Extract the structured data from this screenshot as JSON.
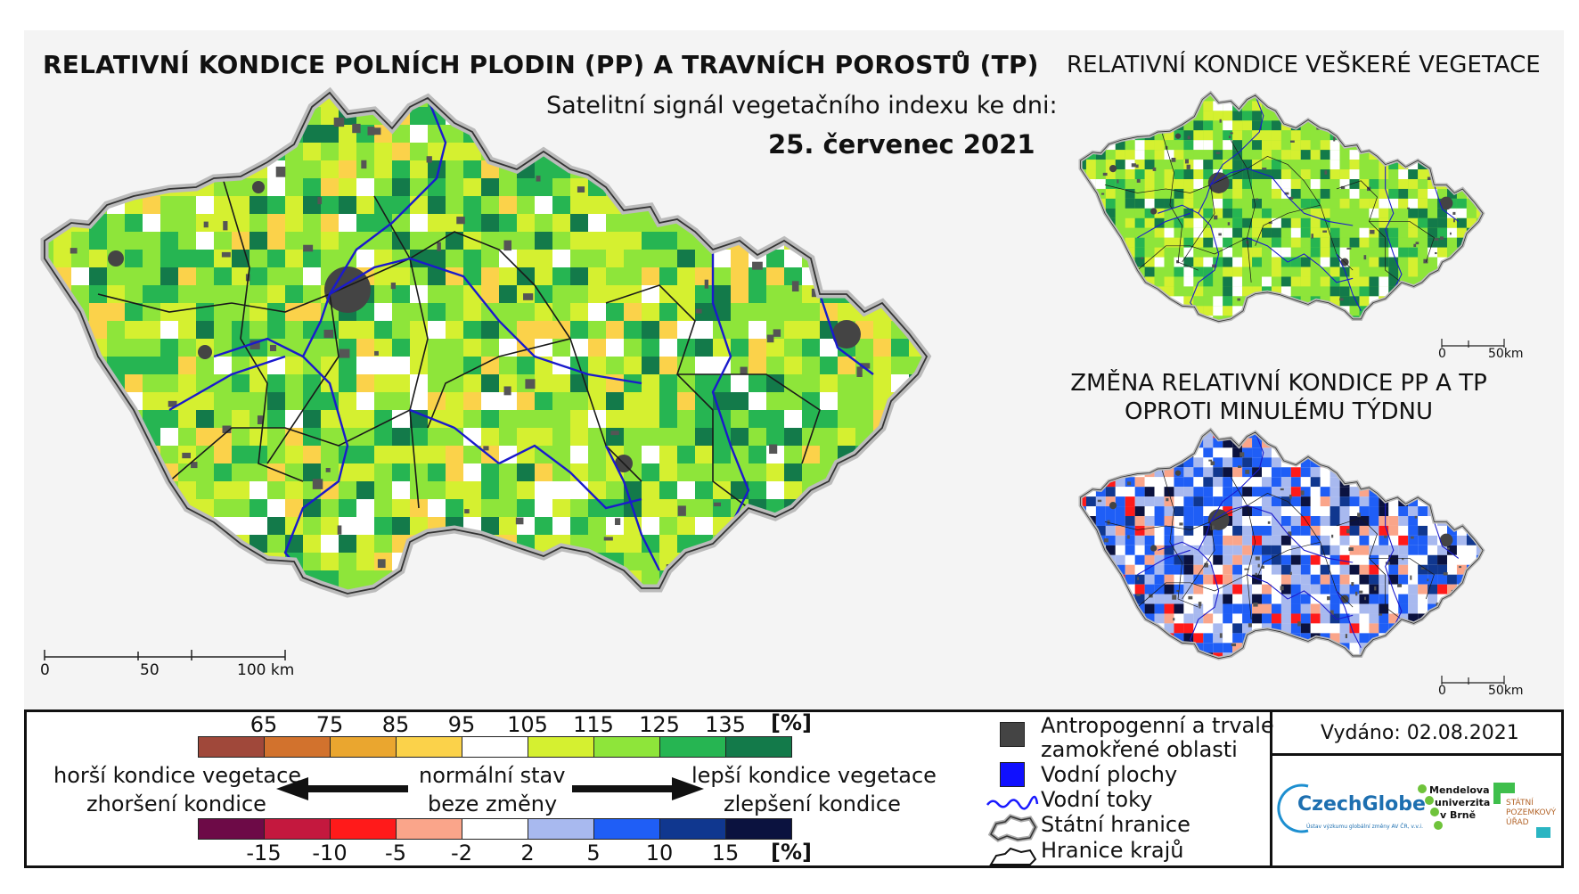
{
  "titles": {
    "main": "RELATIVNÍ KONDICE POLNÍCH PLODIN (PP) A TRAVNÍCH POROSTŮ (TP)",
    "subtitle": "Satelitní signál vegetačního indexu ke dni:",
    "date": "25. červenec 2021",
    "vegetation": "RELATIVNÍ KONDICE VEŠKERÉ VEGETACE",
    "change_line1": "ZMĚNA RELATIVNÍ KONDICE PP A TP",
    "change_line2": "OPROTI MINULÉMU TÝDNU"
  },
  "scale_main": {
    "t0": "0",
    "t1": "50",
    "t2": "100 km"
  },
  "scale_small": {
    "t0": "0",
    "t1": "50km"
  },
  "condition_scale": {
    "ticks": [
      "65",
      "75",
      "85",
      "95",
      "105",
      "115",
      "125",
      "135"
    ],
    "unit": "[%]",
    "colors": [
      "#a0483a",
      "#d2722d",
      "#eaa62f",
      "#fbd24a",
      "#ffffff",
      "#d5f030",
      "#8ee53a",
      "#26b552",
      "#137a4a"
    ]
  },
  "change_scale": {
    "ticks": [
      "-15",
      "-10",
      "-5",
      "-2",
      "2",
      "5",
      "10",
      "15"
    ],
    "unit": "[%]",
    "colors": [
      "#6d0a47",
      "#c4183e",
      "#ff1a1a",
      "#faa58a",
      "#ffffff",
      "#a8b9ef",
      "#1f5ef6",
      "#10378f",
      "#0b123f"
    ]
  },
  "arrows": {
    "worse_1": "horší kondice vegetace",
    "worse_2": "zhoršení kondice",
    "normal_1": "normální stav",
    "normal_2": "beze změny",
    "better_1": "lepší kondice vegetace",
    "better_2": "zlepšení kondice"
  },
  "legend": {
    "anthropogenic_1": "Antropogenní a trvale",
    "anthropogenic_2": "zamokřené oblasti",
    "water_bodies": "Vodní plochy",
    "rivers": "Vodní toky",
    "state_border": "Státní hranice",
    "regions": "Hranice krajů",
    "anthropogenic_color": "#444444",
    "water_color": "#1010ff"
  },
  "issued": "Vydáno: 02.08.2021",
  "logos": {
    "czechglobe": "CzechGlobe",
    "czechglobe_sub": "Ústav výzkumu globální změny AV ČR, v.v.i.",
    "mendel_1": "Mendelova",
    "mendel_2": "univerzita",
    "mendel_3": "v Brně",
    "spu_1": "STÁTNÍ",
    "spu_2": "POZEMKOVÝ",
    "spu_3": "ÚŘAD"
  }
}
